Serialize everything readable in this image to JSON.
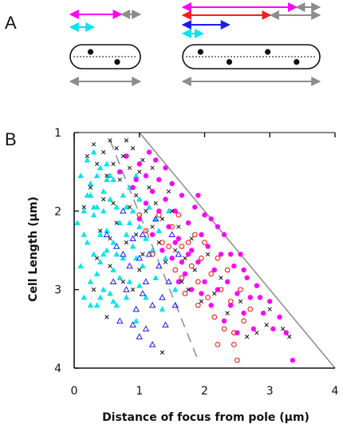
{
  "panels": {
    "a": "A",
    "b": "B"
  },
  "colors": {
    "magenta": "#ff00ff",
    "cyan": "#00e5ee",
    "blue": "#1a1aff",
    "red": "#ff1a1a",
    "gray": "#8c8c8c",
    "black": "#111111"
  },
  "schematic": {
    "short_cell": {
      "arrows": [
        {
          "color": "magenta",
          "from": 0.0,
          "to": 0.73,
          "bidirectional": true
        },
        {
          "color": "gray",
          "from": 0.73,
          "to": 1.0,
          "bidirectional": true
        },
        {
          "color": "cyan",
          "from": 0.0,
          "to": 0.34,
          "bidirectional": true
        }
      ],
      "foci": 2
    },
    "long_cell": {
      "arrows": [
        {
          "color": "magenta",
          "from": 0.0,
          "to": 0.83,
          "bidirectional": true
        },
        {
          "color": "gray",
          "from": 0.83,
          "to": 1.0,
          "bidirectional": true
        },
        {
          "color": "red",
          "from": 0.0,
          "to": 0.64,
          "bidirectional": true
        },
        {
          "color": "gray",
          "from": 0.64,
          "to": 1.0,
          "bidirectional": true
        },
        {
          "color": "blue",
          "from": 0.0,
          "to": 0.34,
          "bidirectional": true
        },
        {
          "color": "cyan",
          "from": 0.0,
          "to": 0.15,
          "bidirectional": true
        }
      ],
      "foci": 4
    }
  },
  "chart_data": {
    "type": "scatter",
    "xlabel": "Distance of focus from pole (µm)",
    "ylabel": "Cell Length (µm)",
    "xlim": [
      0,
      4
    ],
    "ylim": [
      4,
      1
    ],
    "y_inverted": true,
    "xticks": [
      "0",
      "1",
      "2",
      "3",
      "4"
    ],
    "yticks": [
      "1",
      "2",
      "3",
      "4"
    ],
    "reference_lines": [
      {
        "style": "solid",
        "color": "gray",
        "from": [
          1,
          1
        ],
        "to": [
          4,
          4
        ]
      },
      {
        "style": "dashed",
        "color": "gray",
        "from": [
          0.55,
          1.1
        ],
        "to": [
          1.9,
          3.9
        ]
      }
    ],
    "series": [
      {
        "marker": "triangle-filled",
        "color": "cyan",
        "points": [
          [
            0.05,
            2.15
          ],
          [
            0.1,
            1.55
          ],
          [
            0.1,
            2.7
          ],
          [
            0.15,
            3.1
          ],
          [
            0.15,
            2.0
          ],
          [
            0.2,
            1.35
          ],
          [
            0.2,
            1.8
          ],
          [
            0.2,
            2.4
          ],
          [
            0.25,
            1.65
          ],
          [
            0.25,
            2.9
          ],
          [
            0.25,
            3.2
          ],
          [
            0.3,
            2.05
          ],
          [
            0.3,
            1.25
          ],
          [
            0.3,
            2.55
          ],
          [
            0.35,
            1.55
          ],
          [
            0.35,
            1.95
          ],
          [
            0.35,
            2.8
          ],
          [
            0.35,
            3.2
          ],
          [
            0.4,
            1.45
          ],
          [
            0.4,
            2.3
          ],
          [
            0.4,
            2.65
          ],
          [
            0.45,
            1.75
          ],
          [
            0.45,
            2.0
          ],
          [
            0.45,
            3.0
          ],
          [
            0.5,
            1.4
          ],
          [
            0.5,
            2.5
          ],
          [
            0.5,
            2.25
          ],
          [
            0.55,
            1.85
          ],
          [
            0.55,
            3.05
          ],
          [
            0.6,
            1.6
          ],
          [
            0.6,
            2.4
          ],
          [
            0.6,
            2.75
          ],
          [
            0.65,
            1.95
          ],
          [
            0.65,
            3.2
          ],
          [
            0.7,
            2.15
          ],
          [
            0.7,
            1.5
          ],
          [
            0.75,
            2.6
          ],
          [
            0.75,
            1.8
          ],
          [
            0.8,
            2.3
          ],
          [
            0.8,
            3.1
          ],
          [
            0.85,
            1.7
          ],
          [
            0.85,
            2.9
          ],
          [
            0.9,
            2.0
          ],
          [
            0.9,
            2.45
          ],
          [
            0.95,
            1.55
          ],
          [
            0.95,
            3.4
          ],
          [
            1.0,
            2.2
          ],
          [
            1.0,
            1.85
          ],
          [
            1.05,
            2.7
          ],
          [
            1.1,
            2.35
          ],
          [
            1.15,
            1.95
          ],
          [
            1.2,
            2.5
          ],
          [
            1.25,
            2.85
          ],
          [
            1.3,
            2.25
          ],
          [
            1.35,
            3.25
          ],
          [
            1.4,
            2.6
          ],
          [
            1.45,
            2.0
          ],
          [
            1.55,
            3.0
          ],
          [
            0.15,
            2.3
          ],
          [
            0.3,
            1.95
          ],
          [
            0.45,
            2.55
          ],
          [
            0.55,
            1.55
          ],
          [
            0.7,
            2.85
          ],
          [
            0.85,
            2.15
          ],
          [
            1.0,
            2.95
          ],
          [
            0.6,
            3.15
          ],
          [
            0.25,
            1.8
          ],
          [
            0.4,
            3.1
          ],
          [
            0.5,
            1.6
          ],
          [
            0.65,
            2.55
          ],
          [
            0.8,
            1.95
          ],
          [
            0.95,
            2.6
          ],
          [
            1.1,
            3.1
          ],
          [
            1.25,
            2.1
          ]
        ]
      },
      {
        "marker": "triangle-open",
        "color": "blue",
        "points": [
          [
            0.5,
            2.3
          ],
          [
            0.6,
            2.9
          ],
          [
            0.65,
            2.45
          ],
          [
            0.7,
            3.4
          ],
          [
            0.75,
            2.0
          ],
          [
            0.8,
            3.0
          ],
          [
            0.85,
            2.7
          ],
          [
            0.9,
            2.35
          ],
          [
            0.95,
            3.25
          ],
          [
            1.0,
            2.6
          ],
          [
            1.0,
            3.6
          ],
          [
            1.05,
            2.3
          ],
          [
            1.1,
            2.9
          ],
          [
            1.1,
            3.5
          ],
          [
            1.15,
            2.55
          ],
          [
            1.2,
            3.2
          ],
          [
            1.25,
            2.1
          ],
          [
            1.3,
            2.7
          ],
          [
            1.35,
            3.1
          ],
          [
            1.4,
            3.45
          ],
          [
            1.45,
            2.9
          ],
          [
            1.5,
            2.3
          ],
          [
            1.55,
            3.2
          ],
          [
            1.6,
            2.55
          ],
          [
            1.2,
            3.7
          ],
          [
            0.9,
            3.45
          ],
          [
            0.75,
            2.55
          ],
          [
            1.05,
            3.05
          ]
        ]
      },
      {
        "marker": "circle-filled",
        "color": "magenta",
        "points": [
          [
            0.7,
            1.5
          ],
          [
            0.8,
            1.3
          ],
          [
            0.9,
            1.7
          ],
          [
            1.0,
            1.4
          ],
          [
            1.0,
            2.1
          ],
          [
            1.1,
            1.55
          ],
          [
            1.1,
            1.9
          ],
          [
            1.2,
            1.75
          ],
          [
            1.2,
            2.3
          ],
          [
            1.3,
            1.6
          ],
          [
            1.3,
            2.0
          ],
          [
            1.35,
            2.5
          ],
          [
            1.4,
            1.85
          ],
          [
            1.45,
            2.2
          ],
          [
            1.5,
            1.65
          ],
          [
            1.5,
            2.6
          ],
          [
            1.55,
            2.0
          ],
          [
            1.6,
            2.35
          ],
          [
            1.65,
            1.8
          ],
          [
            1.7,
            2.8
          ],
          [
            1.75,
            2.15
          ],
          [
            1.8,
            2.5
          ],
          [
            1.85,
            1.95
          ],
          [
            1.9,
            2.65
          ],
          [
            1.95,
            2.3
          ],
          [
            2.0,
            2.9
          ],
          [
            2.05,
            2.45
          ],
          [
            2.1,
            2.1
          ],
          [
            2.15,
            2.75
          ],
          [
            2.2,
            3.0
          ],
          [
            2.25,
            2.55
          ],
          [
            2.3,
            2.3
          ],
          [
            2.35,
            2.9
          ],
          [
            2.4,
            3.2
          ],
          [
            2.45,
            2.7
          ],
          [
            2.5,
            3.05
          ],
          [
            2.55,
            2.55
          ],
          [
            2.6,
            3.3
          ],
          [
            2.65,
            2.85
          ],
          [
            2.7,
            3.1
          ],
          [
            2.75,
            3.5
          ],
          [
            2.8,
            2.95
          ],
          [
            2.9,
            3.3
          ],
          [
            3.0,
            3.15
          ],
          [
            3.05,
            3.5
          ],
          [
            3.15,
            3.35
          ],
          [
            3.25,
            3.55
          ],
          [
            3.35,
            3.9
          ],
          [
            2.5,
            3.55
          ],
          [
            2.3,
            3.4
          ],
          [
            1.95,
            3.05
          ],
          [
            1.6,
            2.9
          ],
          [
            1.4,
            1.45
          ],
          [
            1.25,
            1.35
          ],
          [
            2.0,
            2.05
          ],
          [
            2.2,
            2.2
          ],
          [
            1.75,
            2.55
          ],
          [
            1.55,
            2.4
          ],
          [
            1.9,
            1.8
          ],
          [
            2.4,
            2.55
          ],
          [
            0.95,
            1.6
          ],
          [
            1.15,
            1.25
          ],
          [
            2.6,
            2.75
          ],
          [
            2.85,
            3.1
          ],
          [
            2.1,
            3.2
          ],
          [
            1.8,
            3.0
          ],
          [
            1.65,
            2.65
          ]
        ]
      },
      {
        "marker": "circle-open",
        "color": "red",
        "points": [
          [
            1.0,
            2.05
          ],
          [
            1.1,
            2.25
          ],
          [
            1.2,
            2.55
          ],
          [
            1.3,
            2.05
          ],
          [
            1.35,
            2.4
          ],
          [
            1.45,
            2.45
          ],
          [
            1.5,
            2.2
          ],
          [
            1.55,
            2.75
          ],
          [
            1.6,
            2.05
          ],
          [
            1.65,
            2.45
          ],
          [
            1.7,
            3.05
          ],
          [
            1.75,
            2.4
          ],
          [
            1.8,
            2.7
          ],
          [
            1.85,
            2.3
          ],
          [
            1.9,
            3.2
          ],
          [
            1.95,
            2.6
          ],
          [
            2.0,
            2.4
          ],
          [
            2.05,
            3.1
          ],
          [
            2.1,
            2.8
          ],
          [
            2.15,
            3.35
          ],
          [
            2.2,
            2.6
          ],
          [
            2.25,
            3.0
          ],
          [
            2.3,
            3.5
          ],
          [
            2.35,
            2.75
          ],
          [
            2.4,
            3.15
          ],
          [
            2.45,
            3.55
          ],
          [
            2.5,
            3.9
          ],
          [
            2.55,
            3.0
          ],
          [
            2.6,
            3.4
          ],
          [
            2.45,
            3.7
          ],
          [
            2.2,
            3.7
          ],
          [
            1.9,
            2.9
          ],
          [
            1.65,
            2.85
          ],
          [
            2.7,
            3.25
          ]
        ]
      },
      {
        "marker": "cross",
        "color": "black",
        "points": [
          [
            0.2,
            1.3
          ],
          [
            0.3,
            1.15
          ],
          [
            0.35,
            1.4
          ],
          [
            0.45,
            1.25
          ],
          [
            0.5,
            1.55
          ],
          [
            0.55,
            1.1
          ],
          [
            0.6,
            1.4
          ],
          [
            0.65,
            1.2
          ],
          [
            0.7,
            1.6
          ],
          [
            0.75,
            1.3
          ],
          [
            0.8,
            1.1
          ],
          [
            0.85,
            1.45
          ],
          [
            0.9,
            1.2
          ],
          [
            0.95,
            1.8
          ],
          [
            1.0,
            1.5
          ],
          [
            1.05,
            1.35
          ],
          [
            1.1,
            2.0
          ],
          [
            1.15,
            1.7
          ],
          [
            1.2,
            2.2
          ],
          [
            1.25,
            1.9
          ],
          [
            1.3,
            2.4
          ],
          [
            1.35,
            2.1
          ],
          [
            1.4,
            2.65
          ],
          [
            1.45,
            1.75
          ],
          [
            1.5,
            2.0
          ],
          [
            1.55,
            2.5
          ],
          [
            1.6,
            2.2
          ],
          [
            1.65,
            2.9
          ],
          [
            1.7,
            2.6
          ],
          [
            1.75,
            3.0
          ],
          [
            1.8,
            2.35
          ],
          [
            1.85,
            2.75
          ],
          [
            1.95,
            3.15
          ],
          [
            2.05,
            2.55
          ],
          [
            2.15,
            3.05
          ],
          [
            2.25,
            2.85
          ],
          [
            2.35,
            3.3
          ],
          [
            2.55,
            3.15
          ],
          [
            2.8,
            3.55
          ],
          [
            2.95,
            3.45
          ],
          [
            3.2,
            3.5
          ],
          [
            3.3,
            3.6
          ],
          [
            3.0,
            3.25
          ],
          [
            2.65,
            3.6
          ],
          [
            1.35,
            3.8
          ],
          [
            0.55,
            2.7
          ],
          [
            0.4,
            2.25
          ],
          [
            0.3,
            3.0
          ],
          [
            0.65,
            2.15
          ],
          [
            0.8,
            2.4
          ],
          [
            0.9,
            3.0
          ],
          [
            0.15,
            1.95
          ],
          [
            0.25,
            1.7
          ],
          [
            0.6,
            1.9
          ],
          [
            0.75,
            2.9
          ],
          [
            1.05,
            2.55
          ],
          [
            0.5,
            3.35
          ],
          [
            0.95,
            2.3
          ],
          [
            1.2,
            1.45
          ],
          [
            0.35,
            2.6
          ],
          [
            0.45,
            1.85
          ],
          [
            0.85,
            1.95
          ],
          [
            1.0,
            2.75
          ],
          [
            0.55,
            2.35
          ]
        ]
      }
    ]
  }
}
